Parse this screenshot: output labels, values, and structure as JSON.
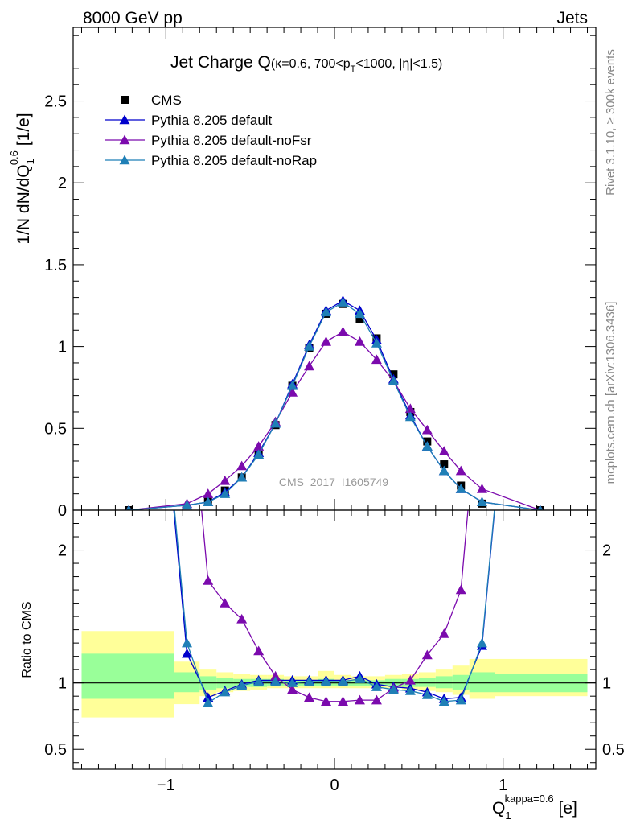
{
  "header": {
    "left": "8000 GeV pp",
    "right": "Jets"
  },
  "side_labels": {
    "rivet": "Rivet 3.1.10, ≥ 300k events",
    "mcplots": "mcplots.cern.ch [arXiv:1306.3436]"
  },
  "chart_data": [
    {
      "type": "scatter",
      "panel": "main",
      "title": "Jet Charge Q",
      "title_sub": "(κ=0.6, 700<p",
      "title_sub_T": "T",
      "title_sub_rest": "<1000, |η|<1.5)",
      "ylabel": "1/N dN/dQ",
      "ylabel_sub": "1",
      "ylabel_sup": "0.6",
      "ylabel_unit": " [1/e]",
      "watermark": "CMS_2017_I1605749",
      "xlim": [
        -1.55,
        1.55
      ],
      "ylim": [
        0,
        2.95
      ],
      "y_ticks": [
        0,
        0.5,
        1,
        1.5,
        2,
        2.5
      ],
      "y_tick_labels": [
        "0",
        "0.5",
        "1",
        "1.5",
        "2",
        "2.5"
      ],
      "legend_position": "top-left",
      "x_bins": [
        -1.22,
        -0.875,
        -0.75,
        -0.65,
        -0.55,
        -0.45,
        -0.35,
        -0.25,
        -0.15,
        -0.05,
        0.05,
        0.15,
        0.25,
        0.35,
        0.45,
        0.55,
        0.65,
        0.75,
        0.875,
        1.22
      ],
      "series": [
        {
          "name": "CMS",
          "color": "#000000",
          "marker": "square",
          "values": [
            0.0,
            null,
            0.06,
            0.12,
            0.2,
            0.34,
            0.52,
            0.76,
            0.99,
            1.2,
            1.26,
            1.17,
            1.05,
            0.83,
            0.6,
            0.42,
            0.28,
            0.15,
            0.04,
            0.0
          ]
        },
        {
          "name": "Pythia 8.205 default",
          "color": "#0000cc",
          "marker": "triangle",
          "values": [
            0.0,
            0.03,
            0.05,
            0.11,
            0.2,
            0.35,
            0.53,
            0.77,
            1.01,
            1.22,
            1.28,
            1.22,
            1.04,
            0.8,
            0.58,
            0.39,
            0.24,
            0.13,
            0.05,
            0.0
          ]
        },
        {
          "name": "Pythia 8.205 default-noFsr",
          "color": "#7b0aad",
          "marker": "triangle",
          "values": [
            0.0,
            0.04,
            0.1,
            0.18,
            0.27,
            0.39,
            0.54,
            0.72,
            0.88,
            1.03,
            1.09,
            1.03,
            0.92,
            0.79,
            0.62,
            0.49,
            0.36,
            0.24,
            0.13,
            0.0
          ]
        },
        {
          "name": "Pythia 8.205 default-noRap",
          "color": "#1f7fb6",
          "marker": "triangle",
          "values": [
            0.0,
            0.03,
            0.05,
            0.1,
            0.2,
            0.34,
            0.53,
            0.76,
            1.0,
            1.21,
            1.27,
            1.2,
            1.02,
            0.79,
            0.57,
            0.39,
            0.24,
            0.13,
            0.05,
            0.0
          ]
        }
      ]
    },
    {
      "type": "line",
      "panel": "ratio",
      "ylabel": "Ratio to CMS",
      "xlabel": "Q",
      "xlabel_sub": "1",
      "xlabel_sup": "kappa=0.6",
      "xlabel_unit": " [e]",
      "xlim": [
        -1.55,
        1.55
      ],
      "ylim": [
        0.35,
        2.3
      ],
      "y_ticks": [
        0.5,
        1,
        2
      ],
      "y_tick_labels": [
        "0.5",
        "1",
        "2"
      ],
      "x_ticks": [
        -1,
        0,
        1
      ],
      "x_tick_labels": [
        "−1",
        "0",
        "1"
      ],
      "x_bins": [
        -0.875,
        -0.75,
        -0.65,
        -0.55,
        -0.45,
        -0.35,
        -0.25,
        -0.15,
        -0.05,
        0.05,
        0.15,
        0.25,
        0.35,
        0.45,
        0.55,
        0.65,
        0.75,
        0.875
      ],
      "bands": {
        "edges": [
          -1.5,
          -0.95,
          -0.8,
          -0.7,
          -0.6,
          -0.5,
          -0.4,
          -0.3,
          -0.2,
          -0.1,
          0.0,
          0.1,
          0.2,
          0.3,
          0.4,
          0.5,
          0.6,
          0.7,
          0.8,
          0.95,
          1.5
        ],
        "stat": {
          "color": "#99ff99",
          "lo": [
            0.88,
            0.93,
            0.95,
            0.96,
            0.97,
            0.97,
            0.98,
            0.98,
            0.98,
            0.98,
            0.98,
            0.98,
            0.98,
            0.98,
            0.97,
            0.97,
            0.96,
            0.95,
            0.93,
            0.93
          ],
          "hi": [
            1.22,
            1.08,
            1.05,
            1.04,
            1.03,
            1.03,
            1.03,
            1.02,
            1.02,
            1.03,
            1.02,
            1.02,
            1.02,
            1.03,
            1.03,
            1.04,
            1.05,
            1.06,
            1.08,
            1.07
          ]
        },
        "total": {
          "color": "#ffff99",
          "lo": [
            0.74,
            0.84,
            0.9,
            0.93,
            0.94,
            0.95,
            0.96,
            0.96,
            0.96,
            0.96,
            0.96,
            0.96,
            0.96,
            0.96,
            0.95,
            0.94,
            0.93,
            0.91,
            0.88,
            0.9
          ],
          "hi": [
            1.39,
            1.16,
            1.1,
            1.08,
            1.07,
            1.06,
            1.06,
            1.05,
            1.05,
            1.09,
            1.06,
            1.05,
            1.05,
            1.06,
            1.07,
            1.08,
            1.1,
            1.13,
            1.18,
            1.18
          ]
        }
      },
      "series": [
        {
          "name": "Pythia 8.205 default",
          "color": "#0000cc",
          "values": [
            1.22,
            0.89,
            0.94,
            0.99,
            1.02,
            1.02,
            1.02,
            1.02,
            1.02,
            1.02,
            1.05,
            0.99,
            0.97,
            0.96,
            0.93,
            0.88,
            0.89,
            1.28
          ]
        },
        {
          "name": "Pythia 8.205 default-noFsr",
          "color": "#7b0aad",
          "values": [
            3.5,
            1.77,
            1.6,
            1.48,
            1.24,
            1.05,
            0.95,
            0.89,
            0.86,
            0.86,
            0.87,
            0.87,
            0.96,
            1.02,
            1.21,
            1.37,
            1.7,
            3.5
          ]
        },
        {
          "name": "Pythia 8.205 default-noRap",
          "color": "#1f7fb6",
          "values": [
            1.3,
            0.85,
            0.93,
            0.98,
            1.01,
            1.01,
            1.0,
            1.01,
            1.01,
            1.01,
            1.03,
            0.97,
            0.95,
            0.94,
            0.91,
            0.86,
            0.87,
            1.3
          ]
        }
      ]
    }
  ]
}
